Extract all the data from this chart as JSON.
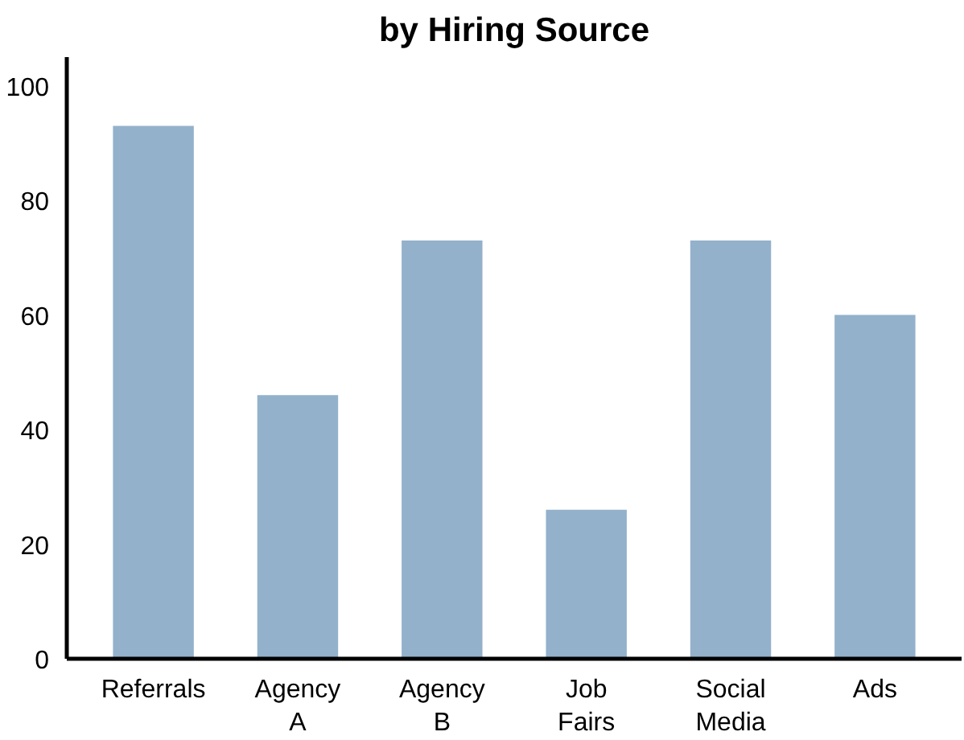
{
  "chart_data": {
    "type": "bar",
    "title": "by Hiring Source",
    "categories": [
      "Referrals",
      "Agency\nA",
      "Agency\nB",
      "Job\nFairs",
      "Social\nMedia",
      "Ads"
    ],
    "values": [
      93,
      46,
      73,
      26,
      73,
      60
    ],
    "color": "#93b1cb",
    "ylim": [
      0,
      105
    ],
    "yticks": [
      0,
      20,
      40,
      60,
      80,
      100
    ],
    "grid": false
  }
}
